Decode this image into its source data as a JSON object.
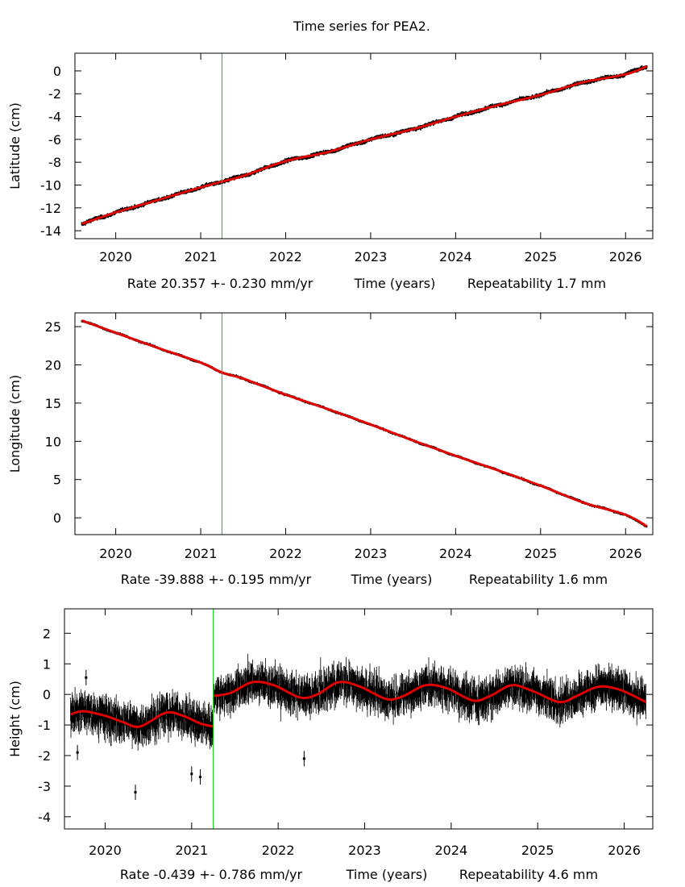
{
  "title": "Time series for PEA2.",
  "colors": {
    "data": "#000000",
    "fit": "#e00000",
    "marker": "#00cc00",
    "frame": "#000000"
  },
  "chart_data": [
    {
      "type": "scatter",
      "name": "latitude",
      "ylabel": "Latitude (cm)",
      "xlabel_parts": [
        "Rate 20.357 +- 0.230 mm/yr",
        "Time (years)",
        "Repeatability 1.7 mm"
      ],
      "xlim": [
        2019.52,
        2026.32
      ],
      "ylim": [
        -14.7,
        1.55
      ],
      "xticks": [
        2020,
        2021,
        2022,
        2023,
        2024,
        2025,
        2026
      ],
      "xtick_labels": [
        "2020",
        "2021",
        "2022",
        "2023",
        "2024",
        "2025",
        "2026"
      ],
      "yticks": [
        0,
        -2,
        -4,
        -6,
        -8,
        -10,
        -12,
        -14
      ],
      "ytick_labels": [
        "0",
        "-2",
        "-4",
        "-6",
        "-8",
        "-10",
        "-12",
        "-14"
      ],
      "grid": false,
      "marker_epoch": 2021.25,
      "series": [
        {
          "name": "observations",
          "x_range": [
            2019.6,
            2026.25
          ],
          "start": -13.4,
          "end": 0.4,
          "noise": 0.17,
          "seasonal_amp": 0.15
        },
        {
          "name": "fit",
          "points": [
            [
              2019.6,
              -13.4
            ],
            [
              2020.0,
              -12.4
            ],
            [
              2020.5,
              -11.3
            ],
            [
              2021.0,
              -10.2
            ],
            [
              2021.25,
              -9.7
            ],
            [
              2021.5,
              -9.2
            ],
            [
              2022.0,
              -7.9
            ],
            [
              2022.5,
              -7.1
            ],
            [
              2023.0,
              -6.0
            ],
            [
              2023.5,
              -5.1
            ],
            [
              2024.0,
              -4.0
            ],
            [
              2024.5,
              -3.0
            ],
            [
              2025.0,
              -2.1
            ],
            [
              2025.5,
              -1.0
            ],
            [
              2026.0,
              -0.3
            ],
            [
              2026.25,
              0.4
            ]
          ]
        }
      ]
    },
    {
      "type": "scatter",
      "name": "longitude",
      "ylabel": "Longitude (cm)",
      "xlabel_parts": [
        "Rate -39.888 +- 0.195 mm/yr",
        "Time (years)",
        "Repeatability 1.6 mm"
      ],
      "xlim": [
        2019.52,
        2026.32
      ],
      "ylim": [
        -2.2,
        26.8
      ],
      "xticks": [
        2020,
        2021,
        2022,
        2023,
        2024,
        2025,
        2026
      ],
      "xtick_labels": [
        "2020",
        "2021",
        "2022",
        "2023",
        "2024",
        "2025",
        "2026"
      ],
      "yticks": [
        25,
        20,
        15,
        10,
        5,
        0
      ],
      "ytick_labels": [
        "25",
        "20",
        "15",
        "10",
        "5",
        "0"
      ],
      "grid": false,
      "marker_epoch": 2021.25,
      "series": [
        {
          "name": "observations",
          "x_range": [
            2019.6,
            2026.25
          ],
          "start": 25.8,
          "end": -1.1,
          "noise": 0.16,
          "seasonal_amp": 0.1
        },
        {
          "name": "fit",
          "points": [
            [
              2019.6,
              25.8
            ],
            [
              2020.0,
              24.2
            ],
            [
              2020.5,
              22.2
            ],
            [
              2021.0,
              20.3
            ],
            [
              2021.25,
              19.0
            ],
            [
              2021.5,
              18.2
            ],
            [
              2022.0,
              16.1
            ],
            [
              2022.5,
              14.2
            ],
            [
              2023.0,
              12.2
            ],
            [
              2023.5,
              10.1
            ],
            [
              2024.0,
              8.1
            ],
            [
              2024.5,
              6.2
            ],
            [
              2025.0,
              4.2
            ],
            [
              2025.5,
              2.0
            ],
            [
              2026.0,
              0.4
            ],
            [
              2026.25,
              -1.1
            ]
          ]
        }
      ]
    },
    {
      "type": "scatter",
      "name": "height",
      "ylabel": "Height (cm)",
      "xlabel_parts": [
        "Rate -0.439 +- 0.786 mm/yr",
        "Time (years)",
        "Repeatability 4.6 mm"
      ],
      "xlim": [
        2019.53,
        2026.33
      ],
      "ylim": [
        -4.4,
        2.8
      ],
      "xticks": [
        2020,
        2021,
        2022,
        2023,
        2024,
        2025,
        2026
      ],
      "xtick_labels": [
        "2020",
        "2021",
        "2022",
        "2023",
        "2024",
        "2025",
        "2026"
      ],
      "yticks": [
        2,
        1,
        0,
        -1,
        -2,
        -3,
        -4
      ],
      "ytick_labels": [
        "2",
        "1",
        "0",
        "-1",
        "-2",
        "-3",
        "-4"
      ],
      "grid": false,
      "marker_epoch": 2021.25,
      "series": [
        {
          "name": "observations",
          "x_range": [
            2019.6,
            2026.25
          ],
          "noise": 0.45,
          "offset_after_marker": 0.9,
          "outliers": [
            [
              2019.78,
              0.55
            ],
            [
              2019.68,
              -1.9
            ],
            [
              2020.35,
              -3.2
            ],
            [
              2021.0,
              -2.6
            ],
            [
              2021.1,
              -2.7
            ],
            [
              2022.3,
              -2.1
            ]
          ]
        },
        {
          "name": "fit",
          "points": [
            [
              2019.6,
              -0.65
            ],
            [
              2019.75,
              -0.55
            ],
            [
              2020.0,
              -0.7
            ],
            [
              2020.2,
              -0.9
            ],
            [
              2020.4,
              -1.05
            ],
            [
              2020.7,
              -0.6
            ],
            [
              2020.9,
              -0.7
            ],
            [
              2021.1,
              -0.95
            ],
            [
              2021.25,
              -1.05
            ],
            [
              2021.25,
              -0.05
            ],
            [
              2021.45,
              0.05
            ],
            [
              2021.7,
              0.4
            ],
            [
              2021.95,
              0.3
            ],
            [
              2022.25,
              -0.1
            ],
            [
              2022.45,
              0.0
            ],
            [
              2022.7,
              0.4
            ],
            [
              2022.95,
              0.25
            ],
            [
              2023.25,
              -0.15
            ],
            [
              2023.45,
              -0.05
            ],
            [
              2023.7,
              0.3
            ],
            [
              2023.95,
              0.2
            ],
            [
              2024.25,
              -0.2
            ],
            [
              2024.45,
              -0.05
            ],
            [
              2024.7,
              0.3
            ],
            [
              2024.95,
              0.1
            ],
            [
              2025.25,
              -0.25
            ],
            [
              2025.45,
              -0.05
            ],
            [
              2025.7,
              0.25
            ],
            [
              2025.95,
              0.15
            ],
            [
              2026.25,
              -0.25
            ]
          ]
        }
      ]
    }
  ]
}
